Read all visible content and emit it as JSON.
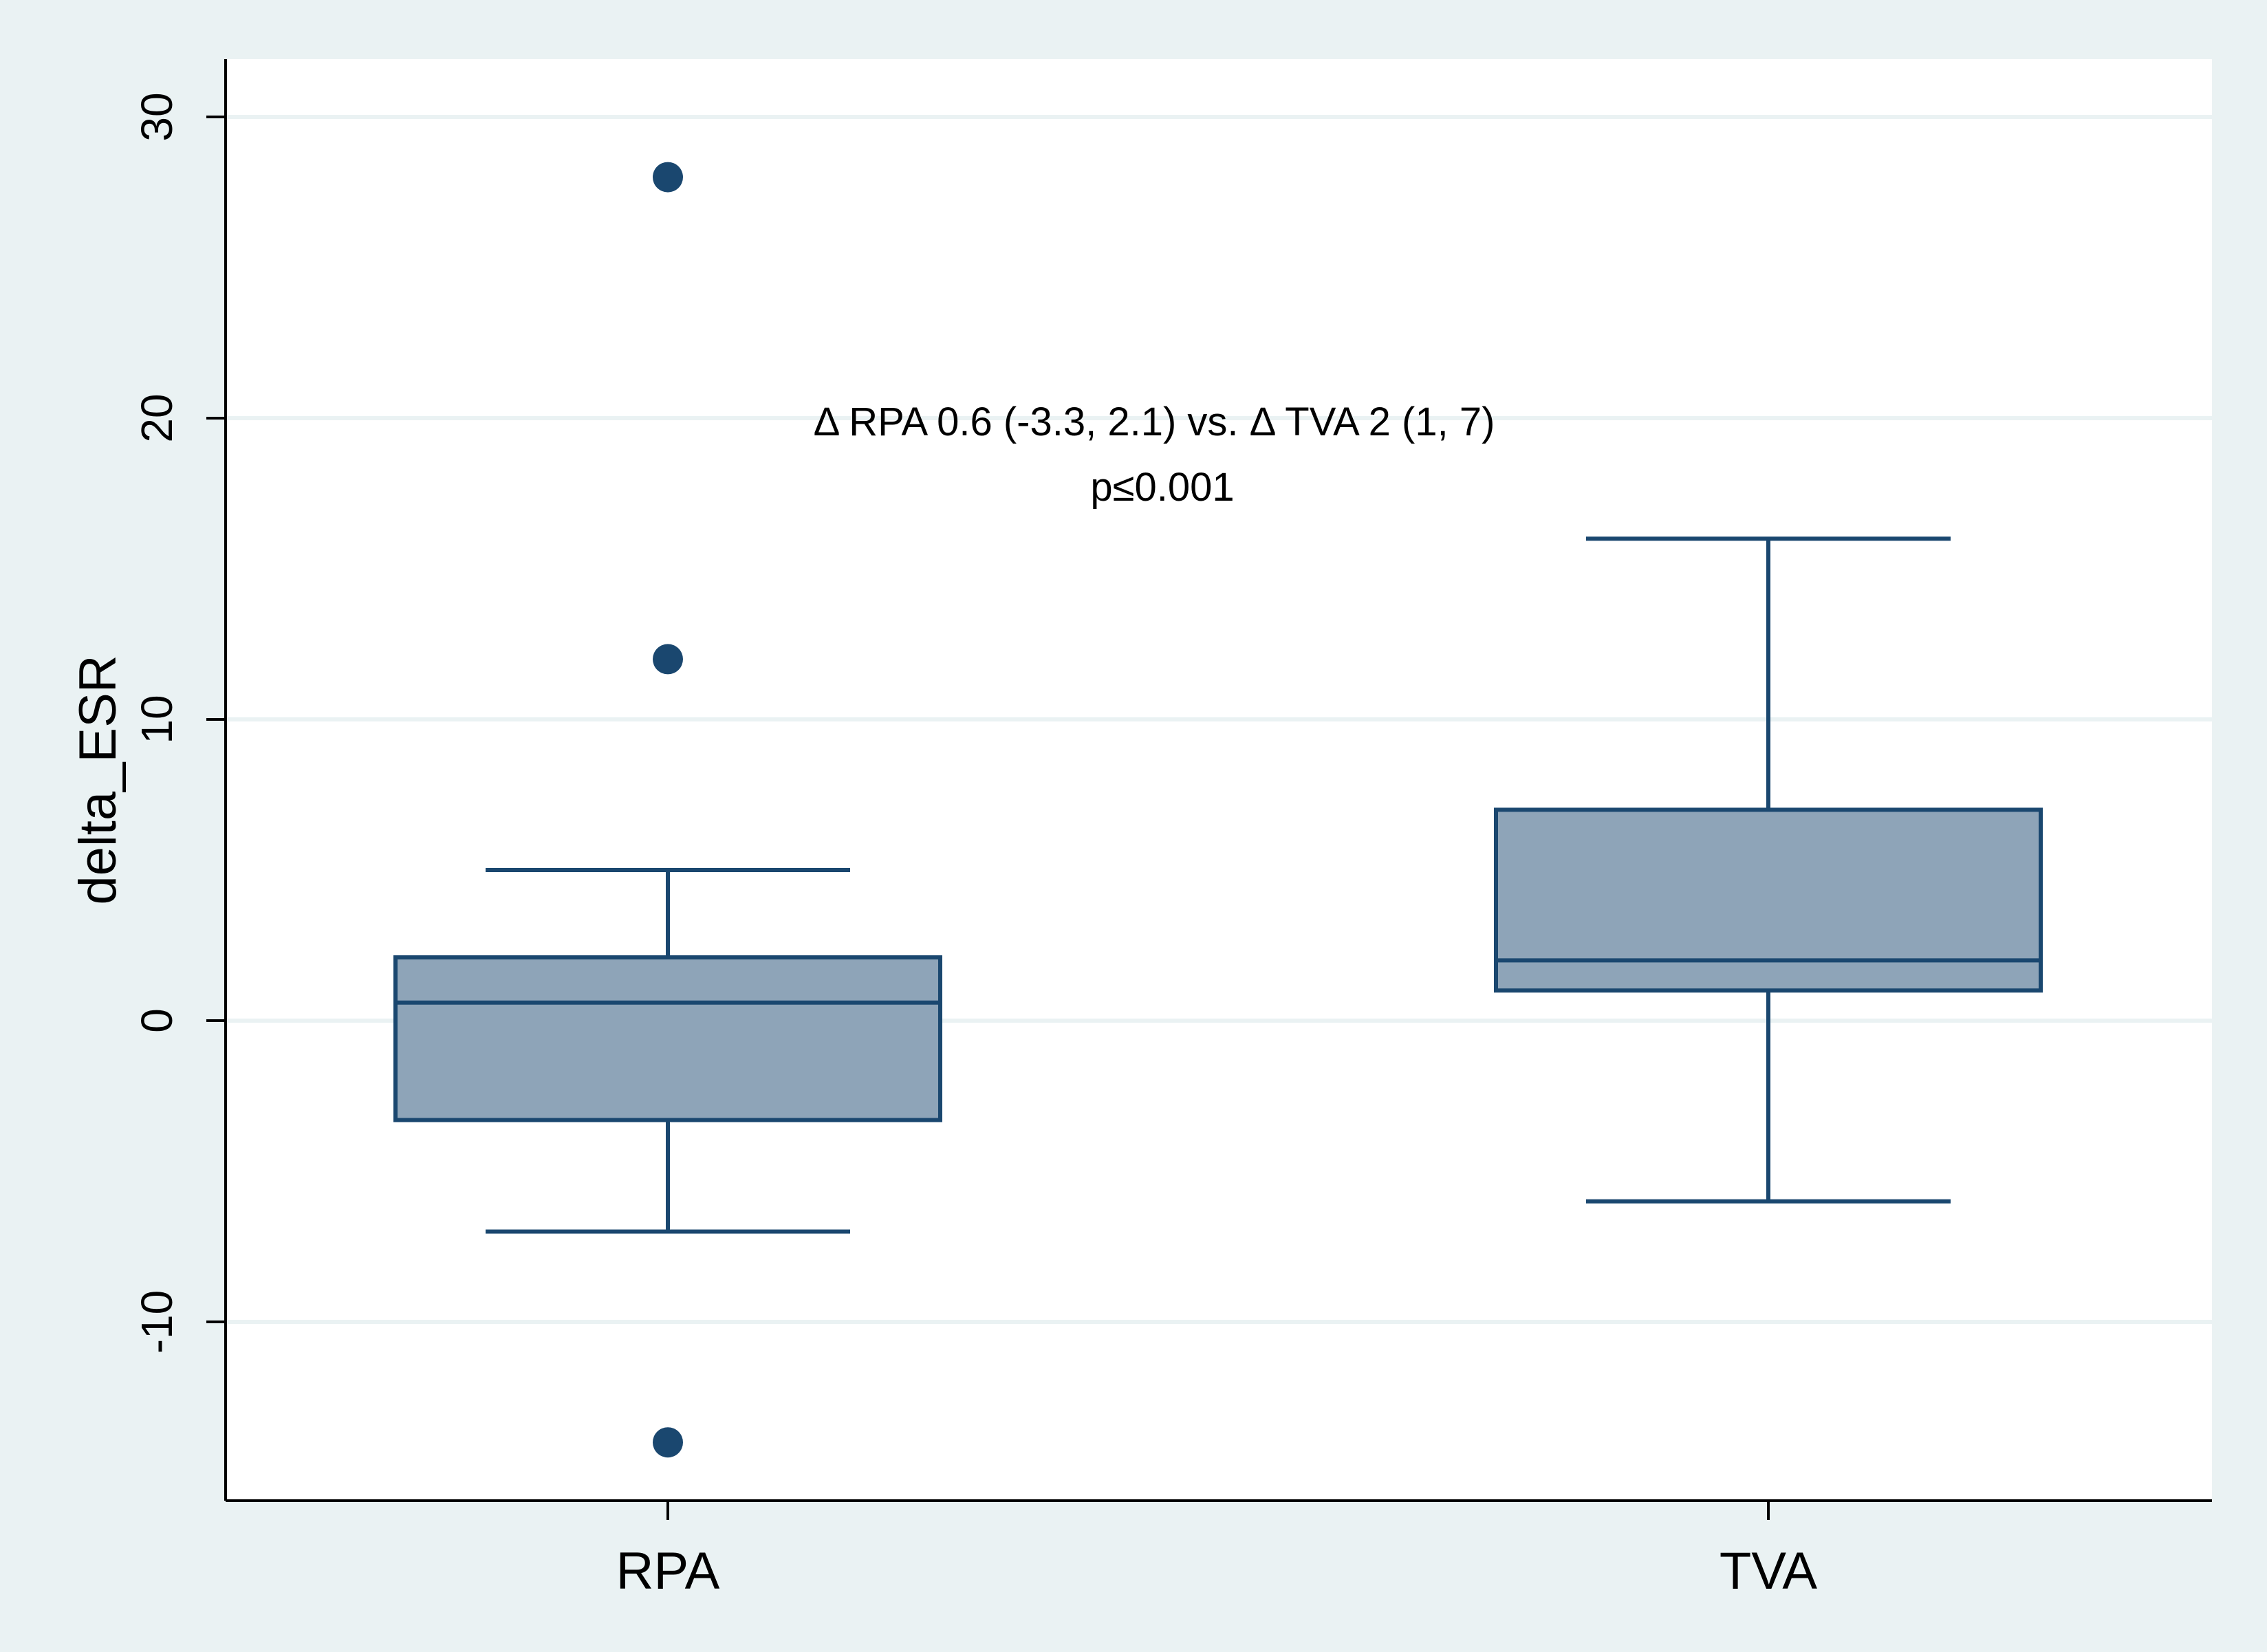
{
  "chart_data": {
    "type": "box",
    "title": "",
    "xlabel": "",
    "ylabel": "delta_ESR",
    "ylim": [
      -15.5,
      32
    ],
    "yticks": [
      -10,
      0,
      10,
      20,
      30
    ],
    "ytick_labels": [
      "-10",
      "0",
      "10",
      "20",
      "30"
    ],
    "grid": true,
    "categories": [
      "RPA",
      "TVA"
    ],
    "boxes": [
      {
        "category": "RPA",
        "whisker_low": -7,
        "q1": -3.3,
        "median": 0.6,
        "q3": 2.1,
        "whisker_high": 5,
        "outliers": [
          28,
          12,
          -14
        ]
      },
      {
        "category": "TVA",
        "whisker_low": -6,
        "q1": 1,
        "median": 2,
        "q3": 7,
        "whisker_high": 16,
        "outliers": []
      }
    ],
    "annotations": [
      "Δ RPA 0.6 (-3.3, 2.1) vs. Δ TVA 2 (1, 7)",
      "p≤0.001"
    ],
    "colors": {
      "background": "#eaf2f3",
      "plot_background": "#ffffff",
      "grid": "#eaf2f3",
      "box_fill": "#8ea4b8",
      "box_line": "#1a476f",
      "outlier": "#1a476f",
      "axis": "#000000"
    }
  }
}
